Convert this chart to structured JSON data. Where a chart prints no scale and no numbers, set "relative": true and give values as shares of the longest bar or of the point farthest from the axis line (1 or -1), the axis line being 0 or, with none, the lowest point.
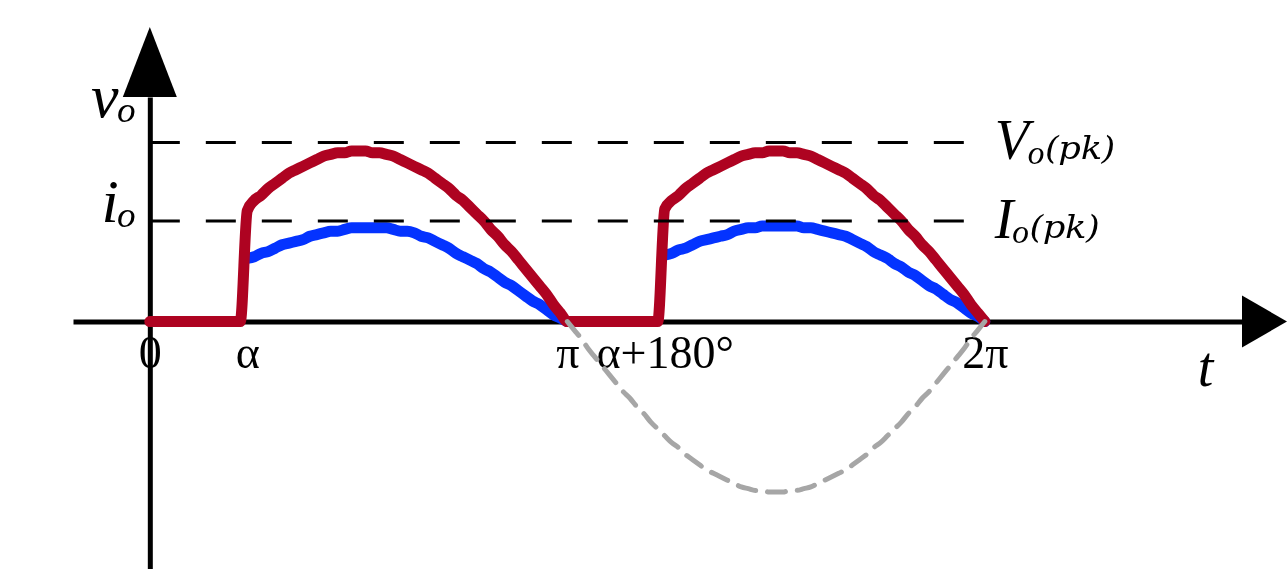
{
  "chart_data": {
    "type": "line",
    "xlabel": "t",
    "ylabel": "vₒ\niₒ",
    "relative": true,
    "line_style": "solid",
    "categories": [
      "0",
      null,
      null,
      null,
      null,
      null,
      null,
      null,
      null,
      null,
      null,
      null,
      null,
      null,
      "α",
      null,
      null,
      null,
      null,
      null,
      null,
      null,
      null,
      null,
      null,
      null,
      null,
      null,
      null,
      null,
      null,
      null,
      null,
      null,
      null,
      null,
      null,
      null,
      null,
      null,
      null,
      null,
      null,
      null,
      null,
      null,
      null,
      null,
      null,
      null,
      null,
      null,
      null,
      null,
      null,
      null,
      null,
      null,
      null,
      null,
      "π",
      null,
      null,
      null,
      null,
      null,
      null,
      null,
      null,
      null,
      null,
      null,
      null,
      null,
      "α+180°",
      null,
      null,
      null,
      null,
      null,
      null,
      null,
      null,
      null,
      null,
      null,
      null,
      null,
      null,
      null,
      null,
      null,
      null,
      null,
      null,
      null,
      null,
      null,
      null,
      null,
      null,
      null,
      null,
      null,
      null,
      null,
      null,
      null,
      null,
      null,
      null,
      null,
      null,
      null,
      null,
      null,
      null,
      null,
      null,
      null,
      "2π"
    ],
    "series": [
      {
        "color": "#0433ff",
        "values": [
          null,
          null,
          null,
          null,
          null,
          null,
          null,
          null,
          null,
          null,
          null,
          null,
          null,
          null,
          0.37,
          0.38,
          0.4,
          0.41,
          0.43,
          0.45,
          0.46,
          0.47,
          0.48,
          0.5,
          0.51,
          0.52,
          0.53,
          0.53,
          0.54,
          0.55,
          0.55,
          0.55,
          0.55,
          0.55,
          0.55,
          0.54,
          0.53,
          0.53,
          0.52,
          0.5,
          0.49,
          0.47,
          0.45,
          0.43,
          0.4,
          0.38,
          0.36,
          0.34,
          0.31,
          0.29,
          0.26,
          0.23,
          0.21,
          0.18,
          0.15,
          0.12,
          0.1,
          0.07,
          0.04,
          0.02,
          0,
          null,
          null,
          null,
          null,
          null,
          null,
          null,
          null,
          null,
          null,
          null,
          null,
          null,
          0.39,
          0.4,
          0.42,
          0.43,
          0.45,
          0.47,
          0.48,
          0.49,
          0.5,
          0.51,
          0.53,
          0.54,
          0.55,
          0.55,
          0.56,
          0.56,
          0.56,
          0.56,
          0.56,
          0.56,
          0.55,
          0.55,
          0.54,
          0.53,
          0.52,
          0.51,
          0.5,
          0.48,
          0.46,
          0.44,
          0.41,
          0.39,
          0.37,
          0.34,
          0.32,
          0.29,
          0.27,
          0.24,
          0.21,
          0.19,
          0.16,
          0.13,
          0.11,
          0.08,
          0.05,
          0.03,
          0
        ]
      },
      {
        "color": "#ae0321",
        "values": [
          0,
          0,
          0,
          0,
          0,
          0,
          0,
          0,
          0,
          0,
          0,
          0,
          0,
          0,
          0.65,
          0.71,
          0.74,
          0.78,
          0.81,
          0.84,
          0.87,
          0.89,
          0.91,
          0.93,
          0.95,
          0.97,
          0.98,
          0.99,
          0.99,
          1,
          1,
          1,
          0.99,
          0.99,
          0.98,
          0.97,
          0.95,
          0.93,
          0.91,
          0.89,
          0.87,
          0.84,
          0.81,
          0.78,
          0.74,
          0.71,
          0.67,
          0.63,
          0.59,
          0.54,
          0.5,
          0.45,
          0.41,
          0.36,
          0.31,
          0.26,
          0.21,
          0.16,
          0.1,
          0.05,
          0,
          0,
          0,
          0,
          0,
          0,
          0,
          0,
          0,
          0,
          0,
          0,
          0,
          0,
          0.66,
          0.71,
          0.74,
          0.78,
          0.81,
          0.84,
          0.87,
          0.89,
          0.91,
          0.93,
          0.95,
          0.97,
          0.98,
          0.99,
          0.99,
          1,
          1,
          1,
          0.99,
          0.99,
          0.98,
          0.97,
          0.95,
          0.93,
          0.91,
          0.89,
          0.87,
          0.84,
          0.81,
          0.78,
          0.74,
          0.71,
          0.67,
          0.63,
          0.59,
          0.54,
          0.5,
          0.45,
          0.41,
          0.36,
          0.31,
          0.26,
          0.21,
          0.16,
          0.1,
          0.05,
          0
        ]
      },
      {
        "color": "#a6a6a6",
        "line_style": "dashed",
        "values": [
          null,
          null,
          null,
          null,
          null,
          null,
          null,
          null,
          null,
          null,
          null,
          null,
          null,
          null,
          null,
          null,
          null,
          null,
          null,
          null,
          null,
          null,
          null,
          null,
          null,
          null,
          null,
          null,
          null,
          null,
          null,
          null,
          null,
          null,
          null,
          null,
          null,
          null,
          null,
          null,
          null,
          null,
          null,
          null,
          null,
          null,
          null,
          null,
          null,
          null,
          null,
          null,
          null,
          null,
          null,
          null,
          null,
          null,
          null,
          null,
          0,
          -0.05,
          -0.1,
          -0.16,
          -0.21,
          -0.26,
          -0.31,
          -0.36,
          -0.41,
          -0.45,
          -0.5,
          -0.54,
          -0.59,
          -0.63,
          -0.67,
          -0.71,
          -0.74,
          -0.78,
          -0.81,
          -0.84,
          -0.87,
          -0.89,
          -0.91,
          -0.93,
          -0.95,
          -0.97,
          -0.98,
          -0.99,
          -0.99,
          -1,
          -1,
          -1,
          -0.99,
          -0.99,
          -0.98,
          -0.97,
          -0.95,
          -0.93,
          -0.91,
          -0.89,
          -0.87,
          -0.84,
          -0.81,
          -0.78,
          -0.74,
          -0.71,
          -0.67,
          -0.63,
          -0.59,
          -0.54,
          -0.5,
          -0.45,
          -0.41,
          -0.36,
          -0.31,
          -0.26,
          -0.21,
          -0.16,
          -0.1,
          -0.05,
          0
        ]
      }
    ],
    "ref_lines": [
      {
        "axis": "y",
        "value": 1.05,
        "label": "Vₒ₍ₚₖ₎",
        "color": "#000000",
        "line_style": "dashed"
      },
      {
        "axis": "y",
        "value": 0.59,
        "label": "Iₒ₍ₚₖ₎",
        "color": "#000000",
        "line_style": "dashed"
      }
    ]
  }
}
